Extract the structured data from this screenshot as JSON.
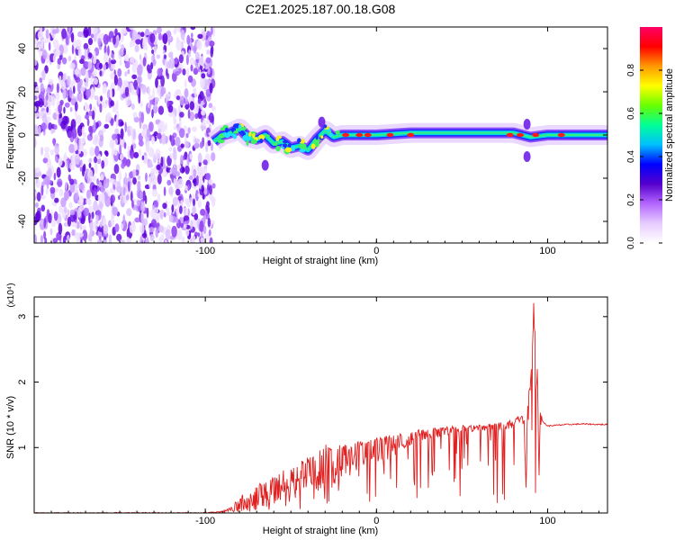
{
  "title": "C2E1.2025.187.00.18.G08",
  "chart_data": [
    {
      "type": "heatmap",
      "xlabel": "Height of straight line (km)",
      "ylabel": "Frequency (Hz)",
      "xlim": [
        -200,
        135
      ],
      "ylim": [
        -50,
        50
      ],
      "xticks": [
        -100,
        0,
        100
      ],
      "yticks": [
        -40,
        -20,
        0,
        20,
        40
      ],
      "grid": false,
      "noise_region_x": [
        -200,
        -95
      ],
      "ridge": [
        [
          -95,
          -3
        ],
        [
          -90,
          0
        ],
        [
          -85,
          1
        ],
        [
          -80,
          3
        ],
        [
          -75,
          -1
        ],
        [
          -70,
          -2
        ],
        [
          -65,
          0
        ],
        [
          -60,
          -4
        ],
        [
          -55,
          -3
        ],
        [
          -50,
          -6
        ],
        [
          -45,
          -5
        ],
        [
          -40,
          -7
        ],
        [
          -35,
          -2
        ],
        [
          -30,
          2
        ],
        [
          -25,
          -1
        ],
        [
          -20,
          0
        ],
        [
          -10,
          0
        ],
        [
          0,
          0
        ],
        [
          20,
          1
        ],
        [
          40,
          1
        ],
        [
          60,
          1
        ],
        [
          80,
          1
        ],
        [
          90,
          -1
        ],
        [
          100,
          0
        ],
        [
          110,
          0
        ],
        [
          120,
          0
        ],
        [
          135,
          0
        ]
      ],
      "sidebands": [
        [
          -65,
          -14
        ],
        [
          -32,
          6
        ],
        [
          88,
          -10
        ],
        [
          88,
          5
        ]
      ],
      "colorbar": {
        "label": "Normalized spectral amplitude",
        "range": [
          0,
          1
        ],
        "ticks": [
          0.0,
          0.2,
          0.4,
          0.6,
          0.8
        ],
        "tick_labels": [
          "0.0",
          "0.2",
          "0.4",
          "0.6",
          "0.8"
        ],
        "colors": [
          "#ffffff",
          "#e6ccff",
          "#b366ff",
          "#5500cc",
          "#0000ff",
          "#00bfff",
          "#00ff99",
          "#66ff00",
          "#ffff00",
          "#ff9900",
          "#ff0000",
          "#ff0066"
        ]
      }
    },
    {
      "type": "line",
      "xlabel": "Height of straight line (km)",
      "ylabel": "SNR (10 * v/v)",
      "scale_label": "(x10⁴)",
      "xlim": [
        -200,
        135
      ],
      "ylim": [
        0,
        3.3
      ],
      "xticks": [
        -100,
        0,
        100
      ],
      "yticks": [
        1,
        2,
        3
      ],
      "color": "#e02020",
      "grid": false,
      "series": [
        {
          "x": [
            -200,
            -160,
            -120,
            -100,
            -90,
            -85,
            -80,
            -75,
            -70,
            -65,
            -60,
            -55,
            -50,
            -45,
            -40,
            -35,
            -30,
            -25,
            -20,
            -15,
            -10,
            -5,
            0,
            5,
            10,
            20,
            30,
            40,
            50,
            60,
            70,
            75,
            80,
            85,
            88,
            90,
            91,
            92,
            93,
            94,
            95,
            97,
            100,
            110,
            120,
            135
          ],
          "values": [
            0.0,
            0.0,
            0.0,
            0.0,
            0.02,
            0.05,
            0.12,
            0.2,
            0.22,
            0.3,
            0.32,
            0.42,
            0.45,
            0.52,
            0.55,
            0.58,
            0.7,
            0.68,
            0.78,
            0.8,
            0.85,
            0.9,
            0.95,
            1.0,
            1.05,
            1.12,
            1.2,
            1.25,
            1.28,
            1.3,
            1.32,
            1.33,
            1.35,
            1.38,
            1.42,
            1.3,
            2.2,
            3.3,
            1.6,
            2.2,
            1.0,
            1.4,
            1.33,
            1.35,
            1.36,
            1.35
          ],
          "envelope": [
            0.0,
            0.0,
            0.0,
            0.0,
            0.04,
            0.1,
            0.25,
            0.35,
            0.42,
            0.5,
            0.55,
            0.65,
            0.7,
            0.8,
            0.85,
            0.9,
            1.05,
            1.0,
            1.05,
            1.05,
            1.1,
            1.12,
            1.15,
            1.18,
            1.2,
            1.25,
            1.3,
            1.32,
            1.34,
            1.35,
            1.38,
            1.4,
            1.45,
            1.5,
            1.7,
            2.0,
            2.4,
            3.3,
            2.4,
            2.2,
            1.6,
            1.45,
            1.38,
            1.38,
            1.38,
            1.37
          ]
        }
      ]
    }
  ]
}
